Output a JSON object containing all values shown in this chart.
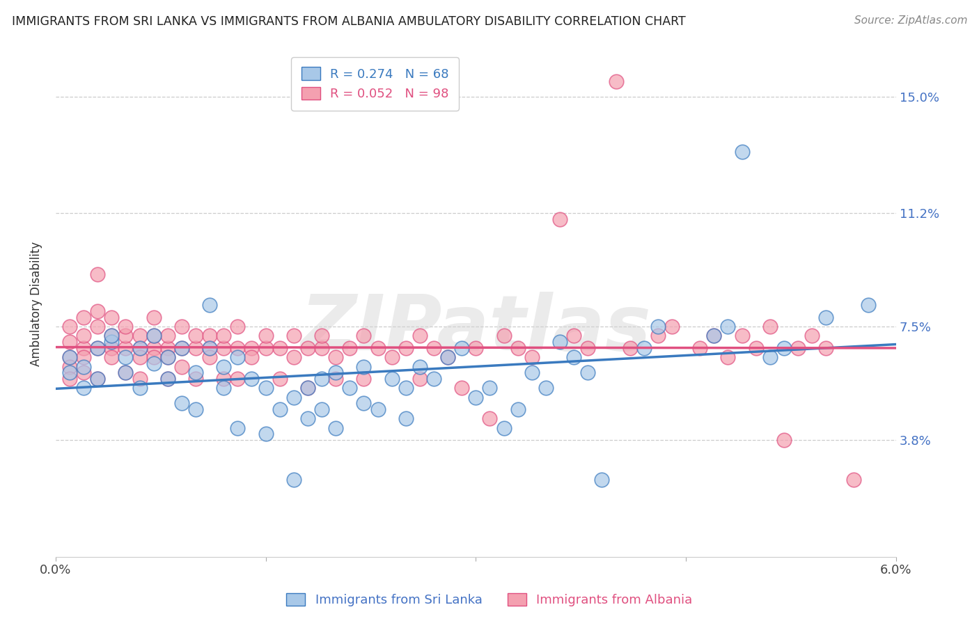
{
  "title": "IMMIGRANTS FROM SRI LANKA VS IMMIGRANTS FROM ALBANIA AMBULATORY DISABILITY CORRELATION CHART",
  "source": "Source: ZipAtlas.com",
  "ylabel": "Ambulatory Disability",
  "ytick_labels": [
    "15.0%",
    "11.2%",
    "7.5%",
    "3.8%"
  ],
  "ytick_values": [
    0.15,
    0.112,
    0.075,
    0.038
  ],
  "xlim": [
    0.0,
    0.06
  ],
  "ylim": [
    0.0,
    0.165
  ],
  "sri_lanka_R": "0.274",
  "sri_lanka_N": "68",
  "albania_R": "0.052",
  "albania_N": "98",
  "sri_lanka_color": "#a8c8e8",
  "albania_color": "#f4a0b0",
  "sri_lanka_line_color": "#3a7abf",
  "albania_line_color": "#e05080",
  "watermark": "ZIPatlas",
  "sri_lanka_points": [
    [
      0.001,
      0.06
    ],
    [
      0.001,
      0.065
    ],
    [
      0.002,
      0.062
    ],
    [
      0.002,
      0.055
    ],
    [
      0.003,
      0.068
    ],
    [
      0.003,
      0.058
    ],
    [
      0.004,
      0.07
    ],
    [
      0.004,
      0.072
    ],
    [
      0.005,
      0.065
    ],
    [
      0.005,
      0.06
    ],
    [
      0.006,
      0.068
    ],
    [
      0.006,
      0.055
    ],
    [
      0.007,
      0.063
    ],
    [
      0.007,
      0.072
    ],
    [
      0.008,
      0.065
    ],
    [
      0.008,
      0.058
    ],
    [
      0.009,
      0.05
    ],
    [
      0.009,
      0.068
    ],
    [
      0.01,
      0.06
    ],
    [
      0.01,
      0.048
    ],
    [
      0.011,
      0.068
    ],
    [
      0.011,
      0.082
    ],
    [
      0.012,
      0.062
    ],
    [
      0.012,
      0.055
    ],
    [
      0.013,
      0.065
    ],
    [
      0.013,
      0.042
    ],
    [
      0.014,
      0.058
    ],
    [
      0.015,
      0.04
    ],
    [
      0.015,
      0.055
    ],
    [
      0.016,
      0.048
    ],
    [
      0.017,
      0.025
    ],
    [
      0.017,
      0.052
    ],
    [
      0.018,
      0.045
    ],
    [
      0.018,
      0.055
    ],
    [
      0.019,
      0.048
    ],
    [
      0.019,
      0.058
    ],
    [
      0.02,
      0.06
    ],
    [
      0.02,
      0.042
    ],
    [
      0.021,
      0.055
    ],
    [
      0.022,
      0.05
    ],
    [
      0.022,
      0.062
    ],
    [
      0.023,
      0.048
    ],
    [
      0.024,
      0.058
    ],
    [
      0.025,
      0.045
    ],
    [
      0.025,
      0.055
    ],
    [
      0.026,
      0.062
    ],
    [
      0.027,
      0.058
    ],
    [
      0.028,
      0.065
    ],
    [
      0.029,
      0.068
    ],
    [
      0.03,
      0.052
    ],
    [
      0.031,
      0.055
    ],
    [
      0.032,
      0.042
    ],
    [
      0.033,
      0.048
    ],
    [
      0.034,
      0.06
    ],
    [
      0.035,
      0.055
    ],
    [
      0.036,
      0.07
    ],
    [
      0.037,
      0.065
    ],
    [
      0.038,
      0.06
    ],
    [
      0.039,
      0.025
    ],
    [
      0.042,
      0.068
    ],
    [
      0.043,
      0.075
    ],
    [
      0.047,
      0.072
    ],
    [
      0.048,
      0.075
    ],
    [
      0.049,
      0.132
    ],
    [
      0.051,
      0.065
    ],
    [
      0.052,
      0.068
    ],
    [
      0.055,
      0.078
    ],
    [
      0.058,
      0.082
    ]
  ],
  "albania_points": [
    [
      0.001,
      0.065
    ],
    [
      0.001,
      0.062
    ],
    [
      0.001,
      0.07
    ],
    [
      0.001,
      0.058
    ],
    [
      0.001,
      0.075
    ],
    [
      0.002,
      0.068
    ],
    [
      0.002,
      0.072
    ],
    [
      0.002,
      0.06
    ],
    [
      0.002,
      0.078
    ],
    [
      0.002,
      0.065
    ],
    [
      0.003,
      0.068
    ],
    [
      0.003,
      0.075
    ],
    [
      0.003,
      0.058
    ],
    [
      0.003,
      0.08
    ],
    [
      0.003,
      0.092
    ],
    [
      0.004,
      0.068
    ],
    [
      0.004,
      0.072
    ],
    [
      0.004,
      0.065
    ],
    [
      0.004,
      0.078
    ],
    [
      0.005,
      0.068
    ],
    [
      0.005,
      0.072
    ],
    [
      0.005,
      0.06
    ],
    [
      0.005,
      0.075
    ],
    [
      0.006,
      0.068
    ],
    [
      0.006,
      0.072
    ],
    [
      0.006,
      0.065
    ],
    [
      0.006,
      0.058
    ],
    [
      0.007,
      0.068
    ],
    [
      0.007,
      0.072
    ],
    [
      0.007,
      0.078
    ],
    [
      0.007,
      0.065
    ],
    [
      0.008,
      0.068
    ],
    [
      0.008,
      0.072
    ],
    [
      0.008,
      0.065
    ],
    [
      0.008,
      0.058
    ],
    [
      0.009,
      0.068
    ],
    [
      0.009,
      0.075
    ],
    [
      0.009,
      0.062
    ],
    [
      0.01,
      0.068
    ],
    [
      0.01,
      0.072
    ],
    [
      0.01,
      0.058
    ],
    [
      0.011,
      0.068
    ],
    [
      0.011,
      0.072
    ],
    [
      0.011,
      0.065
    ],
    [
      0.012,
      0.068
    ],
    [
      0.012,
      0.072
    ],
    [
      0.012,
      0.058
    ],
    [
      0.013,
      0.068
    ],
    [
      0.013,
      0.075
    ],
    [
      0.013,
      0.058
    ],
    [
      0.014,
      0.068
    ],
    [
      0.014,
      0.065
    ],
    [
      0.015,
      0.068
    ],
    [
      0.015,
      0.072
    ],
    [
      0.016,
      0.068
    ],
    [
      0.016,
      0.058
    ],
    [
      0.017,
      0.072
    ],
    [
      0.017,
      0.065
    ],
    [
      0.018,
      0.068
    ],
    [
      0.018,
      0.055
    ],
    [
      0.019,
      0.068
    ],
    [
      0.019,
      0.072
    ],
    [
      0.02,
      0.065
    ],
    [
      0.02,
      0.058
    ],
    [
      0.021,
      0.068
    ],
    [
      0.022,
      0.072
    ],
    [
      0.022,
      0.058
    ],
    [
      0.023,
      0.068
    ],
    [
      0.024,
      0.065
    ],
    [
      0.025,
      0.068
    ],
    [
      0.026,
      0.072
    ],
    [
      0.026,
      0.058
    ],
    [
      0.027,
      0.068
    ],
    [
      0.028,
      0.065
    ],
    [
      0.029,
      0.055
    ],
    [
      0.03,
      0.068
    ],
    [
      0.031,
      0.045
    ],
    [
      0.032,
      0.072
    ],
    [
      0.033,
      0.068
    ],
    [
      0.034,
      0.065
    ],
    [
      0.036,
      0.11
    ],
    [
      0.037,
      0.072
    ],
    [
      0.038,
      0.068
    ],
    [
      0.04,
      0.155
    ],
    [
      0.041,
      0.068
    ],
    [
      0.043,
      0.072
    ],
    [
      0.044,
      0.075
    ],
    [
      0.046,
      0.068
    ],
    [
      0.047,
      0.072
    ],
    [
      0.048,
      0.065
    ],
    [
      0.049,
      0.072
    ],
    [
      0.05,
      0.068
    ],
    [
      0.051,
      0.075
    ],
    [
      0.052,
      0.038
    ],
    [
      0.053,
      0.068
    ],
    [
      0.054,
      0.072
    ],
    [
      0.055,
      0.068
    ],
    [
      0.057,
      0.025
    ]
  ]
}
